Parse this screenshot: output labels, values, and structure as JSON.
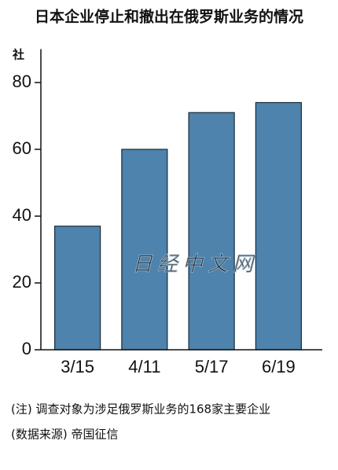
{
  "chart_data": {
    "type": "bar",
    "title": "日本企业停止和撤出在俄罗斯业务的情况",
    "y_label": "社",
    "categories": [
      "3/15",
      "4/11",
      "5/17",
      "6/19"
    ],
    "values": [
      37,
      60,
      71,
      74
    ],
    "color": "#4d83ad",
    "ylim": [
      0,
      90
    ],
    "yticks": [
      0,
      20,
      40,
      60,
      80
    ],
    "watermark": "日经中文网",
    "notes": [
      "(注) 调查对象为涉足俄罗斯业务的168家主要企业",
      "(数据来源) 帝国征信"
    ]
  }
}
